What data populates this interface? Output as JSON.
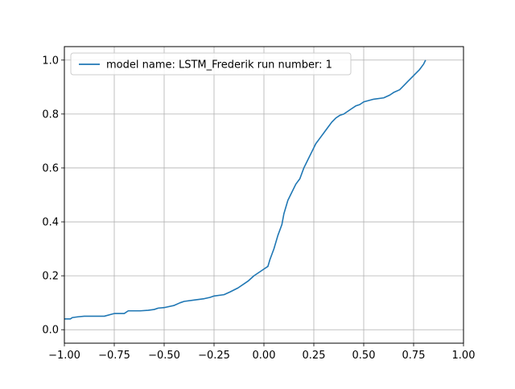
{
  "chart_data": {
    "type": "line",
    "title": "",
    "xlabel": "",
    "ylabel": "",
    "xlim": [
      -1.0,
      1.0
    ],
    "ylim": [
      -0.05,
      1.05
    ],
    "x_ticks": [
      -1.0,
      -0.75,
      -0.5,
      -0.25,
      0.0,
      0.25,
      0.5,
      0.75,
      1.0
    ],
    "x_tick_labels": [
      "−1.00",
      "−0.75",
      "−0.50",
      "−0.25",
      "0.00",
      "0.25",
      "0.50",
      "0.75",
      "1.00"
    ],
    "y_ticks": [
      0.0,
      0.2,
      0.4,
      0.6,
      0.8,
      1.0
    ],
    "y_tick_labels": [
      "0.0",
      "0.2",
      "0.4",
      "0.6",
      "0.8",
      "1.0"
    ],
    "grid": true,
    "legend_position": "top-left",
    "series": [
      {
        "name": "model name: LSTM_Frederik run number: 1",
        "color": "#1f77b4",
        "x": [
          -1.0,
          -0.97,
          -0.96,
          -0.93,
          -0.9,
          -0.85,
          -0.8,
          -0.76,
          -0.75,
          -0.7,
          -0.68,
          -0.62,
          -0.58,
          -0.55,
          -0.53,
          -0.5,
          -0.45,
          -0.42,
          -0.4,
          -0.35,
          -0.3,
          -0.27,
          -0.25,
          -0.2,
          -0.17,
          -0.13,
          -0.1,
          -0.08,
          -0.05,
          -0.02,
          0.0,
          0.02,
          0.03,
          0.05,
          0.07,
          0.09,
          0.1,
          0.12,
          0.14,
          0.16,
          0.18,
          0.2,
          0.22,
          0.24,
          0.26,
          0.28,
          0.3,
          0.32,
          0.34,
          0.36,
          0.38,
          0.4,
          0.42,
          0.44,
          0.46,
          0.48,
          0.5,
          0.55,
          0.6,
          0.63,
          0.65,
          0.68,
          0.7,
          0.72,
          0.74,
          0.76,
          0.78,
          0.8,
          0.81
        ],
        "y": [
          0.04,
          0.04,
          0.045,
          0.048,
          0.05,
          0.05,
          0.05,
          0.058,
          0.06,
          0.06,
          0.07,
          0.07,
          0.072,
          0.075,
          0.08,
          0.082,
          0.09,
          0.1,
          0.105,
          0.11,
          0.115,
          0.12,
          0.125,
          0.13,
          0.14,
          0.155,
          0.17,
          0.18,
          0.2,
          0.215,
          0.225,
          0.235,
          0.26,
          0.3,
          0.35,
          0.39,
          0.43,
          0.48,
          0.51,
          0.54,
          0.56,
          0.6,
          0.63,
          0.66,
          0.69,
          0.71,
          0.73,
          0.75,
          0.77,
          0.785,
          0.795,
          0.8,
          0.81,
          0.82,
          0.83,
          0.835,
          0.845,
          0.855,
          0.86,
          0.87,
          0.88,
          0.89,
          0.905,
          0.92,
          0.935,
          0.95,
          0.965,
          0.985,
          1.0
        ]
      }
    ]
  }
}
